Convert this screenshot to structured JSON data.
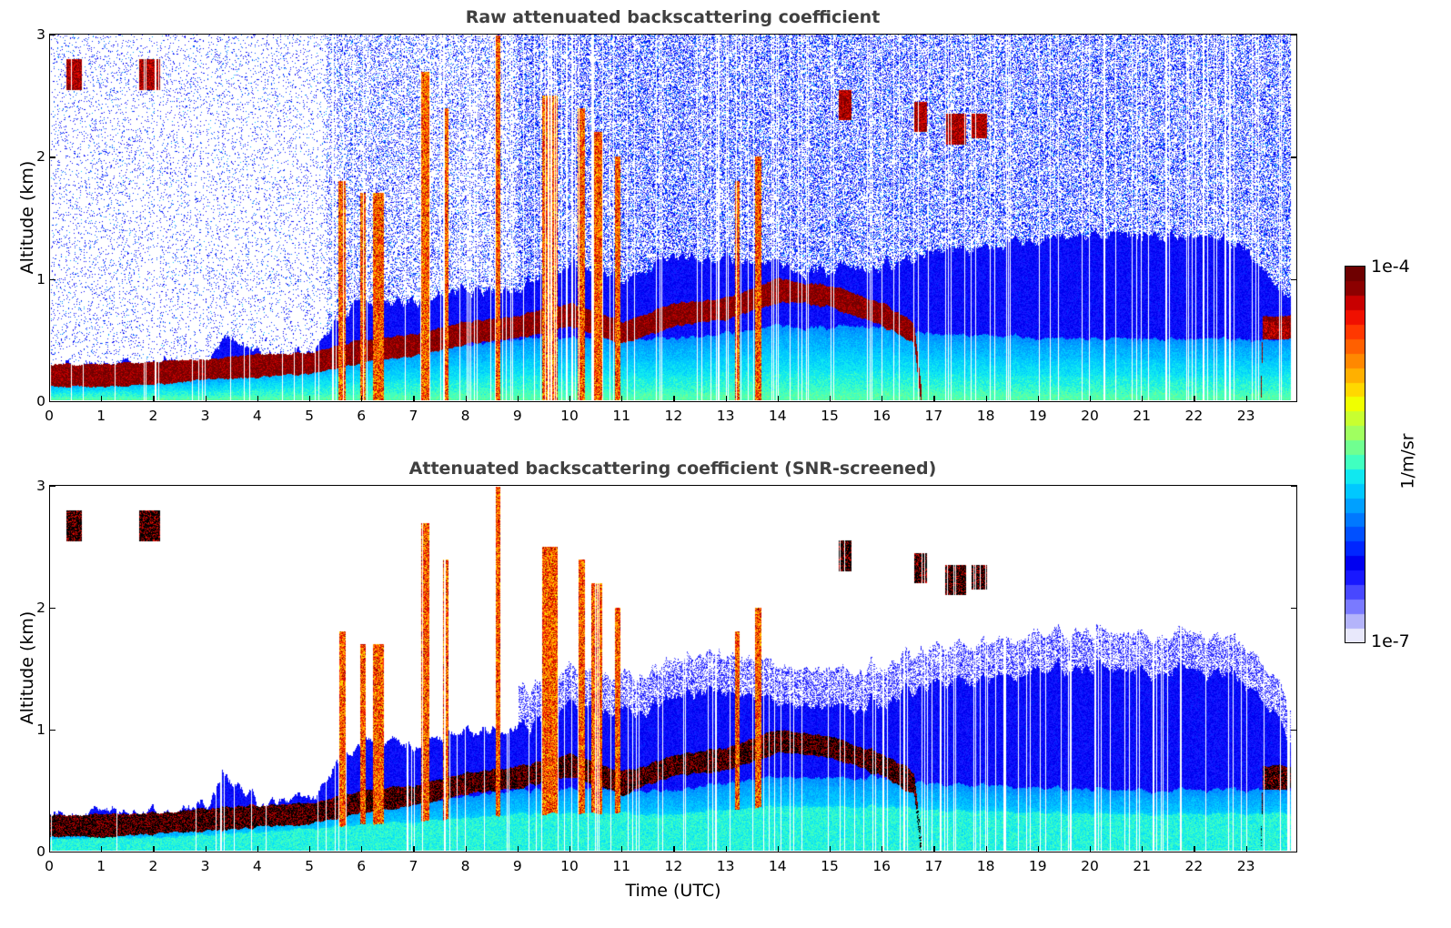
{
  "figure": {
    "xlabel": "Time (UTC)",
    "colorbar": {
      "label": "1/m/sr",
      "max_label": "1e-4",
      "min_label": "1e-7",
      "colormap": [
        "#e8e8fb",
        "#b4b4fa",
        "#7a7aff",
        "#4848ff",
        "#1818ff",
        "#0000f0",
        "#0026ff",
        "#0050ff",
        "#0078ff",
        "#00a0ff",
        "#00c8ff",
        "#10e8f0",
        "#40ffc0",
        "#70ff90",
        "#a0ff60",
        "#c8ff30",
        "#f0ff00",
        "#ffd800",
        "#ffb000",
        "#ff8800",
        "#ff6000",
        "#ff3800",
        "#f01000",
        "#c80000",
        "#8c0000",
        "#6e0000"
      ]
    }
  },
  "chart_data": [
    {
      "type": "heatmap",
      "title": "Raw attenuated backscattering coefficient",
      "xlabel": "",
      "ylabel": "Altitude (km)",
      "xlim": [
        0,
        24
      ],
      "ylim": [
        0,
        3
      ],
      "xticks": [
        "0",
        "1",
        "2",
        "3",
        "4",
        "5",
        "6",
        "7",
        "8",
        "9",
        "10",
        "11",
        "12",
        "13",
        "14",
        "15",
        "16",
        "17",
        "18",
        "19",
        "20",
        "21",
        "22",
        "23"
      ],
      "yticks": [
        "0",
        "1",
        "2",
        "3"
      ],
      "color_scale": {
        "min": 1e-07,
        "max": 0.0001,
        "log": true,
        "unit": "1/m/sr"
      },
      "features": [
        {
          "name": "boundary-layer aerosol",
          "time_range": [
            0,
            24
          ],
          "top_km": [
            0.2,
            0.6
          ]
        },
        {
          "name": "low cloud layer",
          "time_range": [
            0,
            5.5
          ],
          "altitude_km": [
            0.1,
            0.35
          ]
        },
        {
          "name": "elevated cloud",
          "time_range": [
            15.2,
            15.5
          ],
          "altitude_km": [
            2.3,
            2.5
          ]
        },
        {
          "name": "elevated cloud",
          "time_range": [
            16.6,
            18.0
          ],
          "altitude_km": [
            2.1,
            2.4
          ]
        },
        {
          "name": "low cloud",
          "time_range": [
            23.2,
            23.8
          ],
          "altitude_km": [
            0.5,
            0.65
          ]
        }
      ],
      "screened": false
    },
    {
      "type": "heatmap",
      "title": "Attenuated backscattering coefficient (SNR-screened)",
      "xlabel": "Time (UTC)",
      "ylabel": "Altitude (km)",
      "xlim": [
        0,
        24
      ],
      "ylim": [
        0,
        3
      ],
      "xticks": [
        "0",
        "1",
        "2",
        "3",
        "4",
        "5",
        "6",
        "7",
        "8",
        "9",
        "10",
        "11",
        "12",
        "13",
        "14",
        "15",
        "16",
        "17",
        "18",
        "19",
        "20",
        "21",
        "22",
        "23"
      ],
      "yticks": [
        "0",
        "1",
        "2",
        "3"
      ],
      "color_scale": {
        "min": 1e-07,
        "max": 0.0001,
        "log": true,
        "unit": "1/m/sr"
      },
      "features": [
        {
          "name": "boundary-layer aerosol",
          "time_range": [
            0,
            24
          ],
          "top_km": [
            0.2,
            1.7
          ]
        },
        {
          "name": "saturated cloud (black)",
          "time_range": [
            0,
            5.5
          ],
          "altitude_km": [
            0.1,
            0.3
          ]
        },
        {
          "name": "elevated cloud",
          "time_range": [
            15.1,
            15.4
          ],
          "altitude_km": [
            2.3,
            2.6
          ]
        },
        {
          "name": "elevated cloud",
          "time_range": [
            16.7,
            18.0
          ],
          "altitude_km": [
            2.0,
            2.4
          ]
        }
      ],
      "screened": true
    }
  ]
}
